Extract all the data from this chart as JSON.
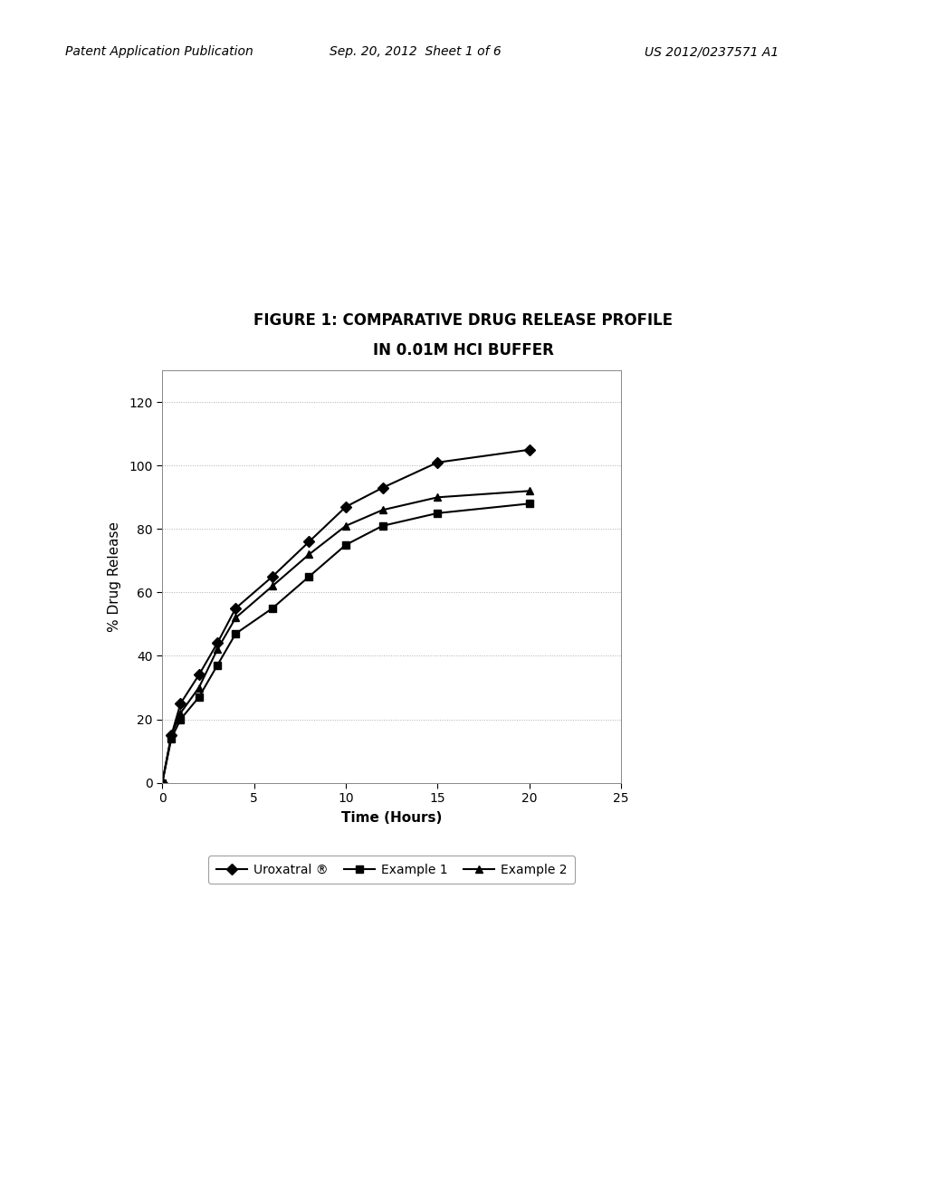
{
  "title_line1": "FIGURE 1: COMPARATIVE DRUG RELEASE PROFILE",
  "title_line2": "IN 0.01M HCI BUFFER",
  "xlabel": "Time (Hours)",
  "ylabel": "% Drug Release",
  "xlim": [
    0,
    25
  ],
  "ylim": [
    0,
    130
  ],
  "xticks": [
    0,
    5,
    10,
    15,
    20,
    25
  ],
  "yticks": [
    0,
    20,
    40,
    60,
    80,
    100,
    120
  ],
  "series": [
    {
      "label": "Uroxatral ®",
      "marker": "D",
      "color": "#000000",
      "x": [
        0,
        0.5,
        1,
        2,
        3,
        4,
        6,
        8,
        10,
        12,
        15,
        20
      ],
      "y": [
        0,
        15,
        25,
        34,
        44,
        55,
        65,
        76,
        87,
        93,
        101,
        105
      ]
    },
    {
      "label": "Example 1",
      "marker": "s",
      "color": "#000000",
      "x": [
        0,
        0.5,
        1,
        2,
        3,
        4,
        6,
        8,
        10,
        12,
        15,
        20
      ],
      "y": [
        0,
        14,
        20,
        27,
        37,
        47,
        55,
        65,
        75,
        81,
        85,
        88
      ]
    },
    {
      "label": "Example 2",
      "marker": "^",
      "color": "#000000",
      "x": [
        0,
        0.5,
        1,
        2,
        3,
        4,
        6,
        8,
        10,
        12,
        15,
        20
      ],
      "y": [
        0,
        15,
        22,
        30,
        42,
        52,
        62,
        72,
        81,
        86,
        90,
        92
      ]
    }
  ],
  "header_left": "Patent Application Publication",
  "header_center": "Sep. 20, 2012  Sheet 1 of 6",
  "header_right": "US 2012/0237571 A1",
  "background_color": "#ffffff",
  "linewidth": 1.5,
  "markersize": 6,
  "header_fontsize": 10,
  "title_fontsize": 12,
  "axis_fontsize": 11,
  "tick_fontsize": 10
}
